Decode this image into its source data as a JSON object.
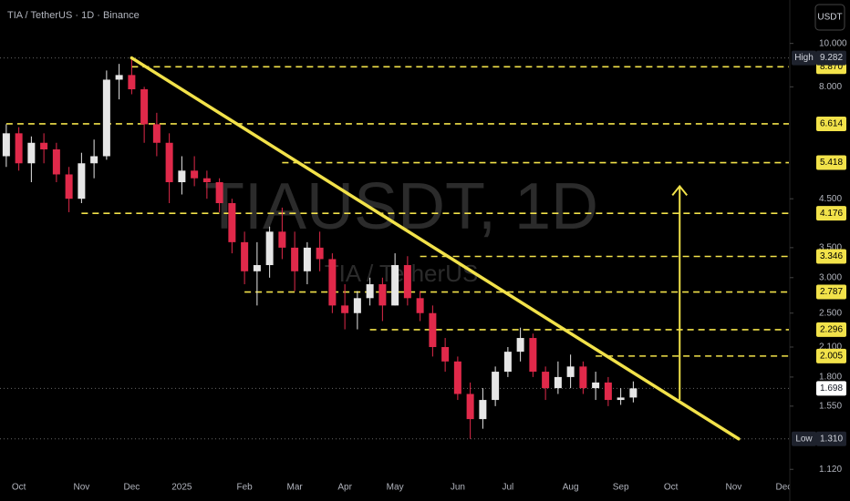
{
  "chart_data": {
    "type": "candlestick",
    "title": "TIA / TetherUS · 1D · Binance",
    "watermark": "TIAUSDT, 1D",
    "watermark_subtitle": "TIA / TetherUS",
    "currency": "USDT",
    "log_scale": true,
    "ylim": [
      1.07,
      12.5
    ],
    "yticks": [
      {
        "value": 10,
        "label": "10.000"
      },
      {
        "value": 8,
        "label": "8.000"
      },
      {
        "value": 4.5,
        "label": "4.500"
      },
      {
        "value": 3.5,
        "label": "3.500"
      },
      {
        "value": 3,
        "label": "3.000"
      },
      {
        "value": 2.5,
        "label": "2.500"
      },
      {
        "value": 2.1,
        "label": "2.100"
      },
      {
        "value": 1.8,
        "label": "1.800"
      },
      {
        "value": 1.55,
        "label": "1.550"
      },
      {
        "value": 1.12,
        "label": "1.120"
      }
    ],
    "categories": [
      null,
      "Oct",
      null,
      null,
      null,
      null,
      "Nov",
      null,
      null,
      null,
      "Dec",
      null,
      null,
      null,
      "2025",
      null,
      null,
      null,
      null,
      "Feb",
      null,
      null,
      null,
      "Mar",
      null,
      null,
      null,
      "Apr",
      null,
      null,
      null,
      "May",
      null,
      null,
      null,
      null,
      "Jun",
      null,
      null,
      null,
      "Jul",
      null,
      null,
      null,
      null,
      "Aug",
      null,
      null,
      null,
      "Sep",
      null,
      null,
      null,
      "Oct",
      null,
      null,
      null,
      null,
      "Nov",
      null,
      null,
      null,
      "Dec",
      null
    ],
    "up_color": "#e6e6e6",
    "down_color": "#e0294a",
    "open": [
      5.6,
      6.3,
      5.4,
      6.0,
      5.8,
      5.1,
      4.5,
      5.4,
      5.6,
      8.3,
      8.5,
      7.9,
      6.6,
      6.0,
      4.9,
      5.2,
      5.0,
      4.9,
      4.4,
      3.6,
      3.1,
      3.2,
      3.8,
      3.5,
      3.1,
      3.5,
      3.3,
      2.6,
      2.5,
      2.7,
      2.9,
      2.6,
      3.2,
      2.7,
      2.5,
      2.1,
      1.95,
      1.65,
      1.45,
      1.6,
      1.85,
      2.05,
      2.2,
      1.85,
      1.7,
      1.8,
      1.9,
      1.7,
      1.75,
      1.6,
      1.62,
      null,
      null,
      null,
      null,
      null,
      null,
      null,
      null,
      null,
      null,
      null,
      null,
      null
    ],
    "high": [
      6.6,
      6.5,
      6.2,
      6.3,
      6.0,
      5.3,
      5.7,
      6.1,
      8.7,
      9.0,
      9.282,
      8.0,
      7.0,
      6.3,
      5.6,
      5.6,
      5.2,
      5.0,
      4.5,
      3.8,
      3.6,
      3.9,
      4.3,
      3.8,
      3.6,
      3.8,
      3.4,
      2.9,
      2.8,
      3.0,
      3.0,
      3.4,
      3.35,
      2.8,
      2.6,
      2.2,
      2.0,
      1.75,
      1.7,
      1.9,
      2.1,
      2.32,
      2.25,
      1.9,
      1.95,
      2.02,
      1.95,
      1.85,
      1.8,
      1.7,
      1.76,
      null,
      null,
      null,
      null,
      null,
      null,
      null,
      null,
      null,
      null,
      null,
      null,
      null
    ],
    "low": [
      5.3,
      5.2,
      4.9,
      5.4,
      4.9,
      4.2,
      4.4,
      5.0,
      5.5,
      7.5,
      7.7,
      6.0,
      5.6,
      4.4,
      4.6,
      4.8,
      4.5,
      4.2,
      3.4,
      2.9,
      2.6,
      3.0,
      3.3,
      2.8,
      2.9,
      3.1,
      2.5,
      2.3,
      2.3,
      2.6,
      2.4,
      2.6,
      2.6,
      2.4,
      2.0,
      1.85,
      1.6,
      1.31,
      1.38,
      1.55,
      1.8,
      1.95,
      1.8,
      1.6,
      1.65,
      1.7,
      1.65,
      1.6,
      1.55,
      1.56,
      1.58,
      null,
      null,
      null,
      null,
      null,
      null,
      null,
      null,
      null,
      null,
      null,
      null,
      null
    ],
    "close": [
      6.3,
      5.4,
      6.0,
      5.8,
      5.1,
      4.5,
      5.4,
      5.6,
      8.3,
      8.5,
      7.9,
      6.6,
      6.0,
      4.9,
      5.2,
      5.0,
      4.9,
      4.4,
      3.6,
      3.1,
      3.2,
      3.8,
      3.5,
      3.1,
      3.5,
      3.3,
      2.6,
      2.5,
      2.7,
      2.9,
      2.6,
      3.2,
      2.7,
      2.5,
      2.1,
      1.95,
      1.65,
      1.45,
      1.6,
      1.85,
      2.05,
      2.2,
      1.85,
      1.7,
      1.8,
      1.9,
      1.7,
      1.75,
      1.6,
      1.62,
      1.698,
      null,
      null,
      null,
      null,
      null,
      null,
      null,
      null,
      null,
      null,
      null,
      null,
      null
    ],
    "level_color": "#f2e24a",
    "levels": [
      {
        "value": 8.87,
        "label": "8.870",
        "from": 10
      },
      {
        "value": 6.614,
        "label": "6.614",
        "from": 0
      },
      {
        "value": 5.418,
        "label": "5.418",
        "from": 22
      },
      {
        "value": 4.176,
        "label": "4.176",
        "from": 6
      },
      {
        "value": 3.346,
        "label": "3.346",
        "from": 33
      },
      {
        "value": 2.787,
        "label": "2.787",
        "from": 19
      },
      {
        "value": 2.296,
        "label": "2.296",
        "from": 29
      },
      {
        "value": 2.005,
        "label": "2.005",
        "from": 47
      }
    ],
    "high_marker": {
      "tag": "High",
      "value": 9.282,
      "label": "9.282"
    },
    "low_marker": {
      "tag": "Low",
      "value": 1.31,
      "label": "1.310"
    },
    "last_price": {
      "value": 1.698,
      "label": "1.698"
    },
    "trendline": {
      "x": [
        10,
        58.4
      ],
      "y": [
        9.282,
        1.31
      ]
    },
    "arrow": {
      "x": 53.7,
      "y": [
        1.6,
        4.8
      ]
    }
  }
}
